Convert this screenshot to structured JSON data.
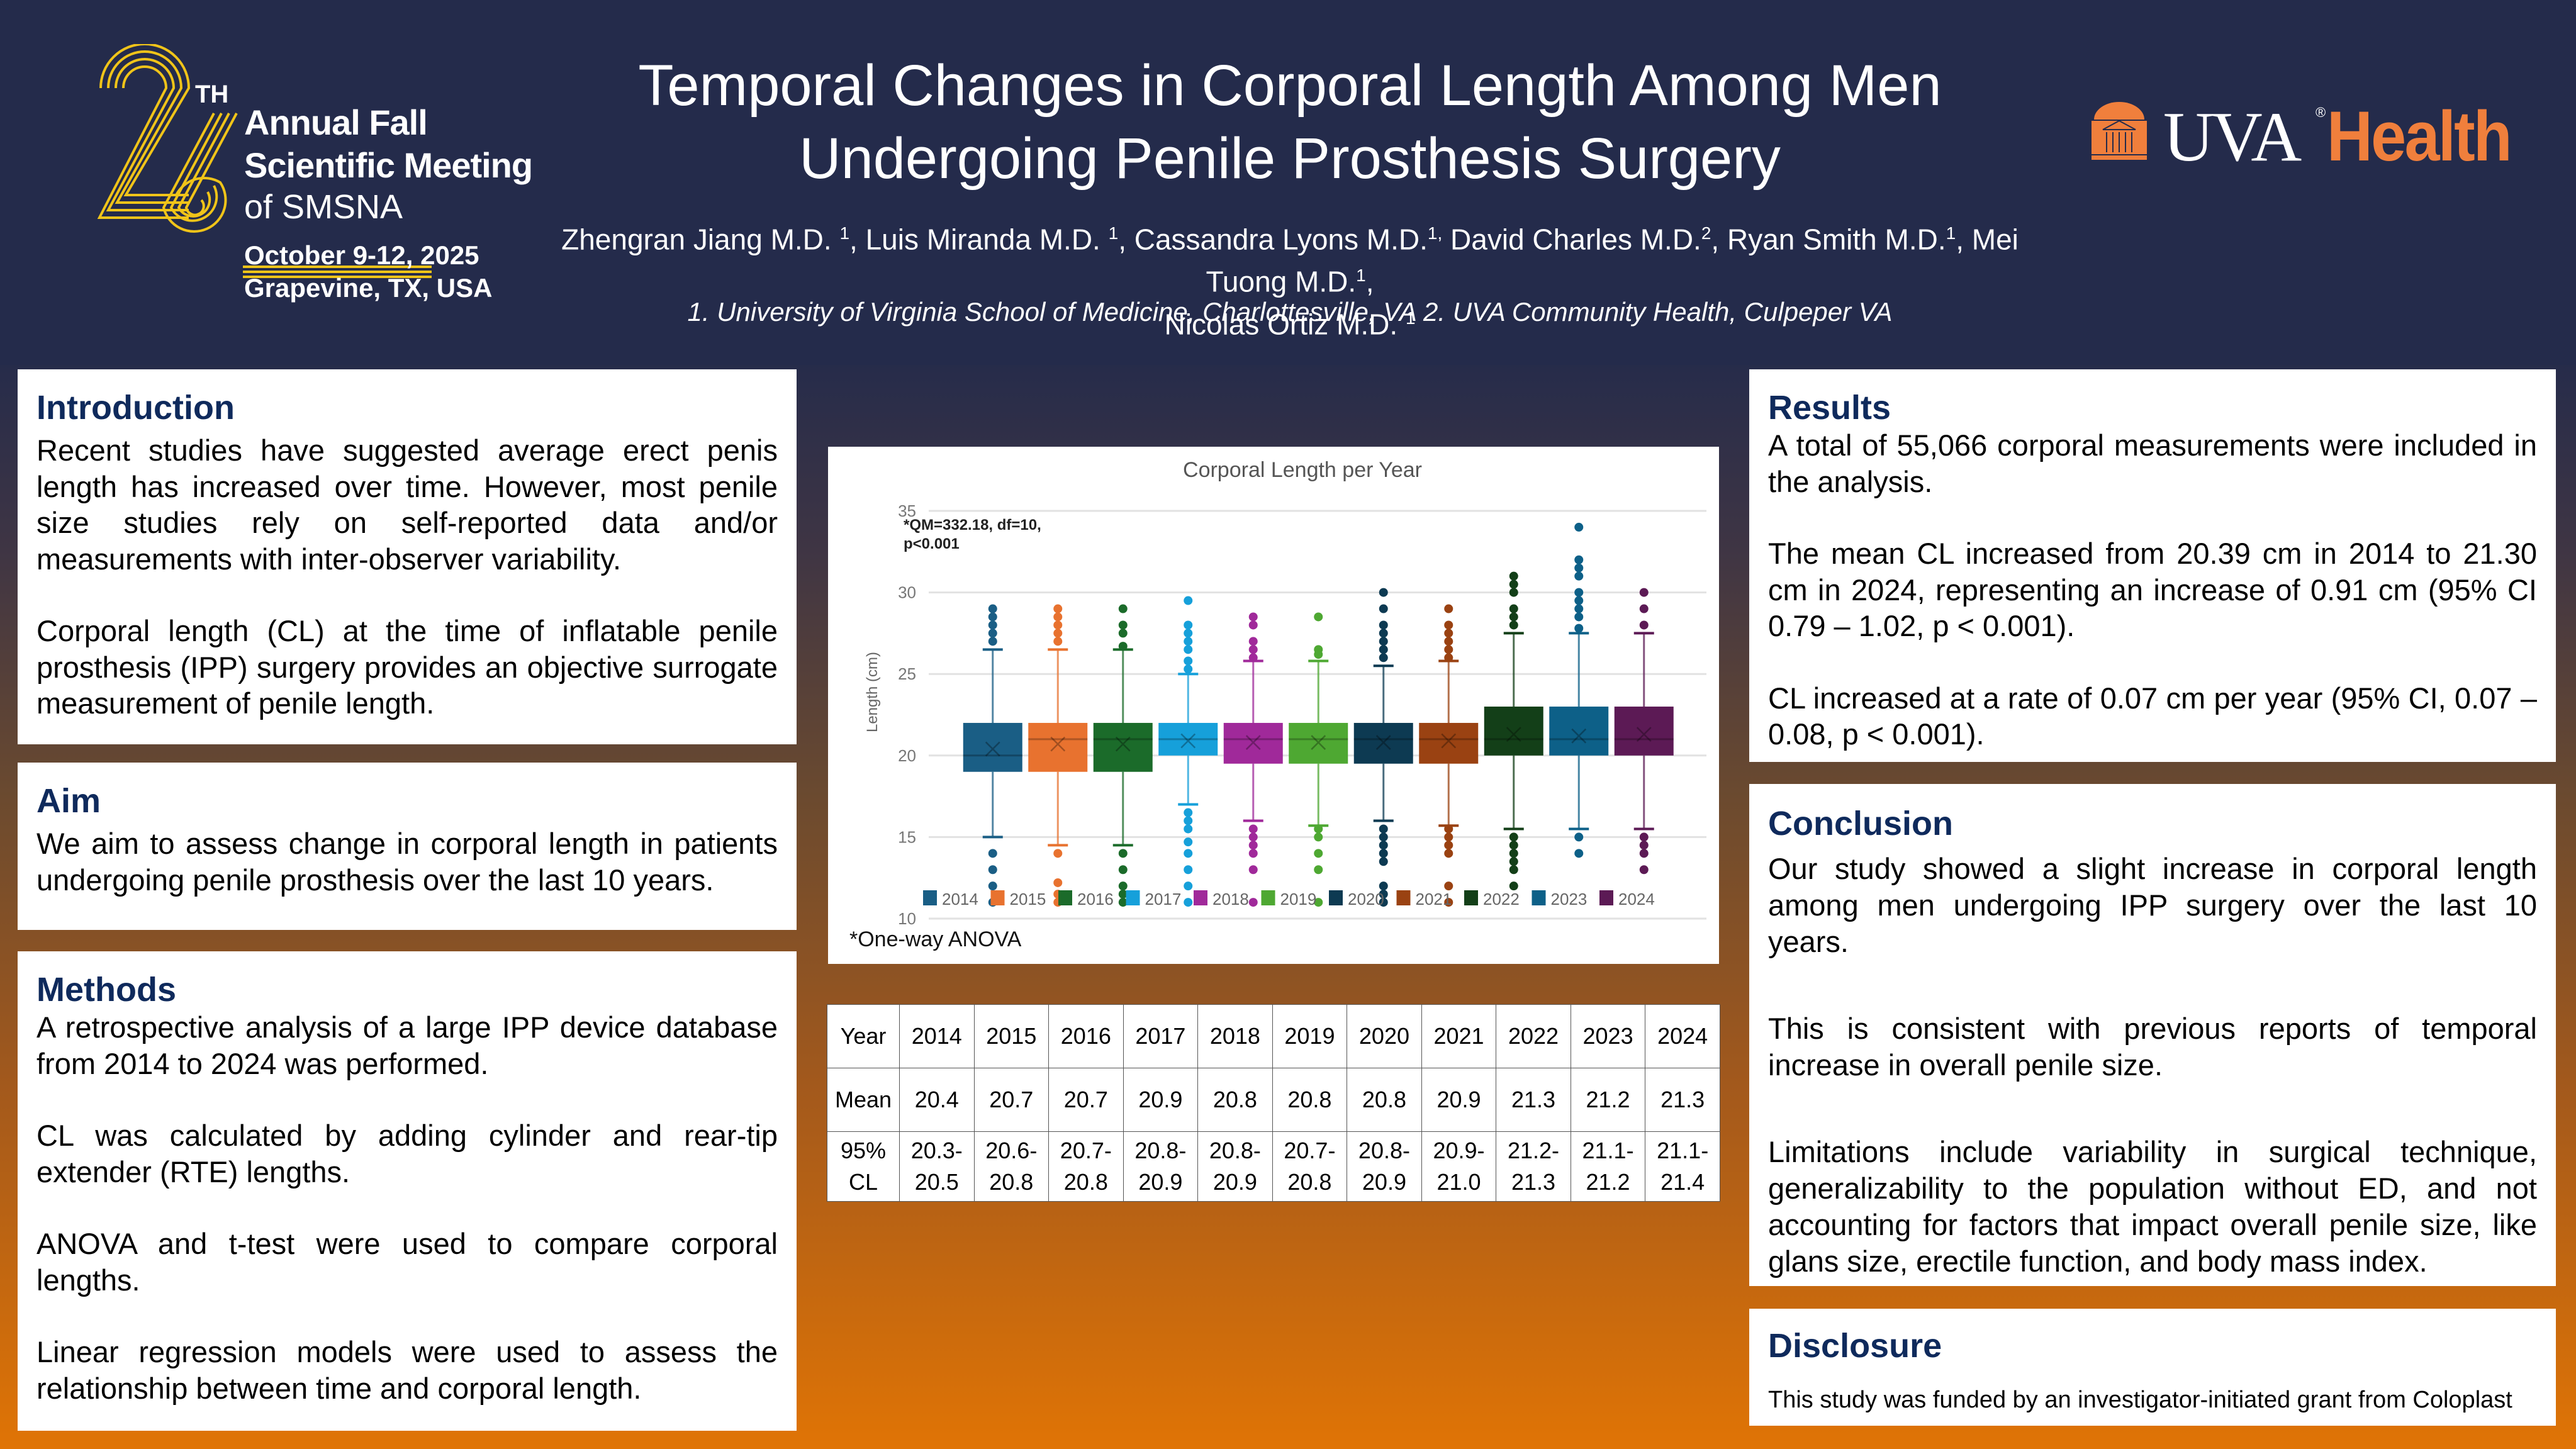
{
  "conference": {
    "number": "26",
    "ordinal_suffix": "TH",
    "line1": "Annual Fall",
    "line2": "Scientific Meeting",
    "line3": "of SMSNA",
    "dates": "October 9-12, 2025",
    "location": "Grapevine, TX, USA",
    "accent_color": "#f0c419"
  },
  "header": {
    "title_line1": "Temporal Changes in Corporal Length Among Men",
    "title_line2": "Undergoing Penile Prosthesis Surgery",
    "authors_line1": [
      {
        "name": "Zhengran Jiang M.D. ",
        "sup": "1",
        "sep": ", "
      },
      {
        "name": "Luis Miranda M.D. ",
        "sup": "1",
        "sep": ", "
      },
      {
        "name": "Cassandra Lyons M.D.",
        "sup": "1,",
        "sep": " "
      },
      {
        "name": "David Charles M.D.",
        "sup": "2",
        "sep": ", "
      },
      {
        "name": "Ryan Smith M.D.",
        "sup": "1",
        "sep": ", "
      },
      {
        "name": "Mei Tuong M.D.",
        "sup": "1",
        "sep": ","
      }
    ],
    "authors_line2": {
      "name": "Nicolas Ortiz M.D. ",
      "sup": "1"
    },
    "affiliations": "1. University of Virginia School of Medicine, Charlottesville, VA 2.  UVA Community Health, Culpeper VA",
    "background_color": "#242b4b"
  },
  "institution_logo": {
    "primary": "UVA",
    "registered": "®",
    "secondary": "Health",
    "brand_color": "#f07f3c"
  },
  "sections": {
    "introduction": {
      "heading": "Introduction",
      "paragraphs": [
        "Recent studies have suggested average erect penis length has increased over time. However, most penile size studies rely on self-reported data and/or measurements with inter-observer variability.",
        "Corporal length (CL) at the time of inflatable penile prosthesis (IPP) surgery provides an objective surrogate measurement of penile length."
      ]
    },
    "aim": {
      "heading": "Aim",
      "paragraphs": [
        "We aim to assess change in corporal length in patients undergoing penile prosthesis over the last 10 years."
      ]
    },
    "methods": {
      "heading": "Methods",
      "paragraphs": [
        "A retrospective analysis of a large IPP device database from 2014 to 2024 was performed.",
        "CL was calculated by adding cylinder and rear-tip extender (RTE) lengths.",
        "ANOVA and t-test were used to compare corporal lengths.",
        "Linear regression models were used to assess the relationship between time and corporal length."
      ]
    },
    "results": {
      "heading": "Results",
      "paragraphs": [
        "A total of 55,066 corporal measurements were included in the analysis.",
        "The mean CL increased from 20.39 cm in 2014 to 21.30 cm in 2024, representing an increase of 0.91 cm (95% CI 0.79 – 1.02, p < 0.001).",
        "CL increased at a rate of 0.07 cm per year (95% CI, 0.07 – 0.08, p < 0.001)."
      ]
    },
    "conclusion": {
      "heading": "Conclusion",
      "paragraphs": [
        "Our study showed a slight increase in corporal length among men undergoing IPP surgery over the last 10 years.",
        "This is consistent with previous reports of temporal increase in overall penile size.",
        "Limitations include variability in surgical technique, generalizability to the population without ED, and not accounting for factors that impact overall penile size, like glans size, erectile function, and body mass index."
      ]
    },
    "disclosure": {
      "heading": "Disclosure",
      "paragraphs": [
        "This study was funded by an investigator-initiated grant from Coloplast"
      ]
    },
    "heading_color": "#0f2a5c"
  },
  "chart_data": {
    "type": "boxplot",
    "title": "Corporal Length per Year",
    "xlabel": "",
    "ylabel": "Length (cm)",
    "ylim": [
      10,
      35
    ],
    "yticks": [
      10,
      15,
      20,
      25,
      30,
      35
    ],
    "grid": true,
    "legend_position": "bottom",
    "annotation_line1": "*QM=332.18, df=10,",
    "annotation_line2": "p<0.001",
    "footnote": "*One-way ANOVA",
    "categories": [
      "2014",
      "2015",
      "2016",
      "2017",
      "2018",
      "2019",
      "2020",
      "2021",
      "2022",
      "2023",
      "2024"
    ],
    "series": [
      {
        "name": "2014",
        "color": "#1a5e85",
        "q1": 19,
        "median": 20,
        "q3": 22,
        "mean": 20.4,
        "whisker_low": 15,
        "whisker_high": 26.5,
        "outliers": [
          11,
          12,
          13,
          14,
          27,
          27.5,
          28,
          28.5,
          29
        ]
      },
      {
        "name": "2015",
        "color": "#e8722f",
        "q1": 19,
        "median": 21,
        "q3": 22,
        "mean": 20.7,
        "whisker_low": 14.5,
        "whisker_high": 26.5,
        "outliers": [
          11,
          11.5,
          12.2,
          14,
          27,
          27.5,
          28,
          28.5,
          29
        ]
      },
      {
        "name": "2016",
        "color": "#1b6b2a",
        "q1": 19,
        "median": 21,
        "q3": 22,
        "mean": 20.7,
        "whisker_low": 14.5,
        "whisker_high": 26.5,
        "outliers": [
          11,
          11.5,
          12,
          13,
          14,
          26.7,
          27.5,
          28,
          29
        ]
      },
      {
        "name": "2017",
        "color": "#16a0da",
        "q1": 20,
        "median": 21,
        "q3": 22,
        "mean": 20.9,
        "whisker_low": 17,
        "whisker_high": 25,
        "outliers": [
          11,
          12,
          13,
          14,
          14.7,
          15.5,
          16,
          16.5,
          25.3,
          25.8,
          26.5,
          27,
          27.5,
          28,
          29.5
        ]
      },
      {
        "name": "2018",
        "color": "#a0299a",
        "q1": 19.5,
        "median": 21,
        "q3": 22,
        "mean": 20.8,
        "whisker_low": 16,
        "whisker_high": 25.8,
        "outliers": [
          11,
          13,
          14,
          14.5,
          15,
          15.5,
          26,
          26.5,
          27,
          28,
          28.5
        ]
      },
      {
        "name": "2019",
        "color": "#4ea832",
        "q1": 19.5,
        "median": 21,
        "q3": 22,
        "mean": 20.8,
        "whisker_low": 15.7,
        "whisker_high": 25.8,
        "outliers": [
          11,
          13,
          14,
          15,
          15.5,
          26.2,
          26.5,
          28.5
        ]
      },
      {
        "name": "2020",
        "color": "#0d3a52",
        "q1": 19.5,
        "median": 21,
        "q3": 22,
        "mean": 20.8,
        "whisker_low": 16,
        "whisker_high": 25.5,
        "outliers": [
          11,
          11.5,
          12,
          13.5,
          14,
          14.5,
          15,
          15.5,
          26,
          26.5,
          27,
          27.5,
          28,
          29,
          30
        ]
      },
      {
        "name": "2021",
        "color": "#9a4212",
        "q1": 19.5,
        "median": 21,
        "q3": 22,
        "mean": 20.9,
        "whisker_low": 15.7,
        "whisker_high": 25.8,
        "outliers": [
          11,
          12,
          14,
          14.5,
          15,
          15.5,
          26,
          26.5,
          27,
          27.5,
          28,
          29
        ]
      },
      {
        "name": "2022",
        "color": "#133f18",
        "q1": 20,
        "median": 21,
        "q3": 23,
        "mean": 21.3,
        "whisker_low": 15.5,
        "whisker_high": 27.5,
        "outliers": [
          12,
          13,
          13.5,
          14,
          14.5,
          15,
          28,
          28.5,
          29,
          30,
          30.5,
          31
        ]
      },
      {
        "name": "2023",
        "color": "#0d6088",
        "q1": 20,
        "median": 21,
        "q3": 23,
        "mean": 21.2,
        "whisker_low": 15.5,
        "whisker_high": 27.5,
        "outliers": [
          14,
          15,
          27.8,
          28.5,
          29,
          29.5,
          30,
          31,
          31.5,
          32,
          34
        ]
      },
      {
        "name": "2024",
        "color": "#5c1a55",
        "q1": 20,
        "median": 21,
        "q3": 23,
        "mean": 21.3,
        "whisker_low": 15.5,
        "whisker_high": 27.5,
        "outliers": [
          13,
          14,
          14.5,
          15,
          28,
          29,
          30
        ]
      }
    ]
  },
  "table": {
    "row_labels": [
      "Year",
      "Mean",
      "95% CL"
    ],
    "years": [
      "2014",
      "2015",
      "2016",
      "2017",
      "2018",
      "2019",
      "2020",
      "2021",
      "2022",
      "2023",
      "2024"
    ],
    "means": [
      "20.4",
      "20.7",
      "20.7",
      "20.9",
      "20.8",
      "20.8",
      "20.8",
      "20.9",
      "21.3",
      "21.2",
      "21.3"
    ],
    "ci": [
      "20.3-20.5",
      "20.6-20.8",
      "20.7-20.8",
      "20.8-20.9",
      "20.8-20.9",
      "20.7-20.8",
      "20.8-20.9",
      "20.9-21.0",
      "21.2-21.3",
      "21.1-21.2",
      "21.1-21.4"
    ]
  }
}
